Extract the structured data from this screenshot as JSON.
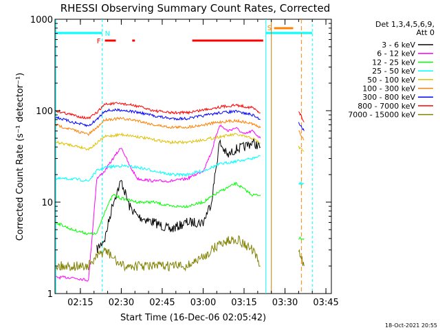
{
  "chart_data": {
    "type": "line",
    "title": "RHESSI Observing Summary Count Rates, Corrected",
    "xlabel": "Start Time (16-Dec-06 02:05:42)",
    "ylabel": "Corrected Count Rate (s⁻¹ detector⁻¹)",
    "ylog": true,
    "ylim": [
      1,
      1000
    ],
    "xlim": [
      "02:05:42",
      "03:47:00"
    ],
    "x_ticks": [
      "02:15",
      "02:30",
      "02:45",
      "03:00",
      "03:15",
      "03:30",
      "03:45"
    ],
    "y_ticks": [
      "1",
      "10",
      "100",
      "1000"
    ],
    "legend_header": [
      "Det 1,3,4,5,6,9,",
      "Att 0"
    ],
    "legend_position": "right",
    "series": [
      {
        "name": "3 - 6 keV",
        "color": "#000000",
        "x": [
          "02:21",
          "02:24",
          "02:27",
          "02:30",
          "02:33",
          "02:36",
          "02:42",
          "02:48",
          "02:54",
          "03:00",
          "03:03",
          "03:06",
          "03:09",
          "03:12",
          "03:15",
          "03:18",
          "03:21"
        ],
        "values": [
          3,
          4,
          10,
          17,
          9,
          7,
          6,
          5,
          6,
          6,
          10,
          45,
          32,
          38,
          40,
          45,
          40
        ]
      },
      {
        "name": "6 - 12 keV",
        "color": "#ff00ff",
        "x": [
          "02:06",
          "02:12",
          "02:18",
          "02:21",
          "02:24",
          "02:27",
          "02:30",
          "02:33",
          "02:36",
          "02:42",
          "02:48",
          "02:54",
          "03:00",
          "03:03",
          "03:06",
          "03:09",
          "03:12",
          "03:15",
          "03:18",
          "03:21"
        ],
        "values": [
          1.5,
          1.5,
          1.4,
          18,
          22,
          30,
          40,
          25,
          18,
          17,
          17,
          18,
          22,
          35,
          70,
          60,
          65,
          55,
          60,
          50
        ]
      },
      {
        "name": "12 - 25 keV",
        "color": "#00ff00",
        "x": [
          "02:06",
          "02:12",
          "02:18",
          "02:21",
          "02:24",
          "02:27",
          "02:30",
          "02:36",
          "02:42",
          "02:48",
          "02:54",
          "03:00",
          "03:06",
          "03:12",
          "03:18",
          "03:21",
          "03:35",
          "03:37"
        ],
        "values": [
          6,
          5,
          4.5,
          4.5,
          8,
          12,
          11,
          10,
          10,
          9,
          9,
          10,
          13,
          16,
          12,
          12,
          4,
          4
        ]
      },
      {
        "name": "25 - 50 keV",
        "color": "#00ffff",
        "x": [
          "02:06",
          "02:12",
          "02:18",
          "02:21",
          "02:24",
          "02:30",
          "02:36",
          "02:42",
          "02:48",
          "02:54",
          "03:00",
          "03:06",
          "03:12",
          "03:18",
          "03:21",
          "03:35",
          "03:37"
        ],
        "values": [
          18,
          18,
          17,
          22,
          24,
          25,
          24,
          22,
          20,
          20,
          22,
          26,
          28,
          30,
          32,
          16,
          16
        ]
      },
      {
        "name": "50 - 100 keV",
        "color": "#e0c000",
        "x": [
          "02:06",
          "02:12",
          "02:18",
          "02:21",
          "02:24",
          "02:30",
          "02:36",
          "02:42",
          "02:48",
          "02:54",
          "03:00",
          "03:06",
          "03:12",
          "03:18",
          "03:21",
          "03:35",
          "03:37"
        ],
        "values": [
          45,
          42,
          38,
          44,
          52,
          55,
          52,
          48,
          45,
          45,
          48,
          52,
          55,
          50,
          44,
          40,
          36
        ]
      },
      {
        "name": "100 - 300 keV",
        "color": "#ff8000",
        "x": [
          "02:06",
          "02:12",
          "02:18",
          "02:21",
          "02:24",
          "02:30",
          "02:36",
          "02:42",
          "02:48",
          "02:54",
          "03:00",
          "03:06",
          "03:12",
          "03:18",
          "03:21",
          "03:35",
          "03:37"
        ],
        "values": [
          70,
          62,
          55,
          65,
          80,
          82,
          78,
          70,
          66,
          66,
          70,
          75,
          78,
          72,
          65,
          60,
          48
        ]
      },
      {
        "name": "300 - 800 keV",
        "color": "#0000ff",
        "x": [
          "02:06",
          "02:12",
          "02:18",
          "02:21",
          "02:24",
          "02:30",
          "02:36",
          "02:42",
          "02:48",
          "02:54",
          "03:00",
          "03:06",
          "03:12",
          "03:18",
          "03:21",
          "03:35",
          "03:37"
        ],
        "values": [
          85,
          75,
          68,
          80,
          100,
          102,
          96,
          88,
          82,
          82,
          88,
          95,
          98,
          90,
          80,
          75,
          60
        ]
      },
      {
        "name": "800 - 7000 keV",
        "color": "#ff0000",
        "x": [
          "02:06",
          "02:12",
          "02:18",
          "02:21",
          "02:24",
          "02:30",
          "02:36",
          "02:42",
          "02:48",
          "02:54",
          "03:00",
          "03:06",
          "03:12",
          "03:18",
          "03:21",
          "03:35",
          "03:37"
        ],
        "values": [
          100,
          90,
          82,
          95,
          118,
          120,
          112,
          100,
          95,
          95,
          102,
          110,
          115,
          108,
          95,
          100,
          75
        ]
      },
      {
        "name": "7000 - 15000 keV",
        "color": "#808000",
        "x": [
          "02:06",
          "02:12",
          "02:18",
          "02:21",
          "02:24",
          "02:30",
          "02:36",
          "02:42",
          "02:48",
          "02:54",
          "03:00",
          "03:06",
          "03:12",
          "03:18",
          "03:21",
          "03:35",
          "03:37"
        ],
        "values": [
          2,
          2,
          2,
          2.5,
          3,
          2,
          2,
          2,
          2,
          2,
          2.5,
          3.5,
          4,
          3,
          2,
          3,
          2
        ]
      }
    ],
    "flags": [
      {
        "label": "N",
        "color": "#00ffff"
      },
      {
        "label": "F",
        "color": "#ff0000"
      },
      {
        "label": "S",
        "color": "#ff8000"
      }
    ],
    "footer_date": "18-Oct-2021 20:55"
  }
}
